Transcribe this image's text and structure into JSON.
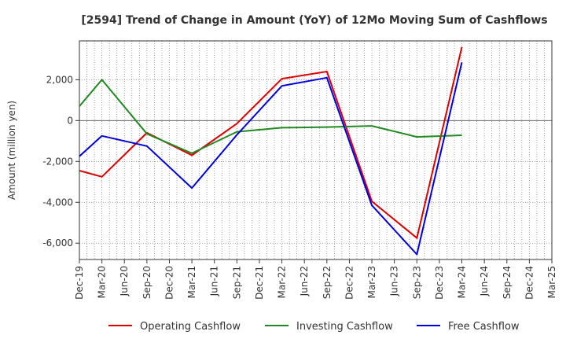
{
  "chart_data": {
    "type": "line",
    "title": "[2594]  Trend of Change in Amount (YoY) of 12Mo Moving Sum of Cashflows",
    "xlabel": "",
    "ylabel": "Amount (million yen)",
    "ylim": [
      -6800,
      3900
    ],
    "yticks": [
      -6000,
      -4000,
      -2000,
      0,
      2000
    ],
    "ytick_labels": [
      "-6,000",
      "-4,000",
      "-2,000",
      "0",
      "2,000"
    ],
    "categories": [
      "Dec-19",
      "Mar-20",
      "Jun-20",
      "Sep-20",
      "Dec-20",
      "Mar-21",
      "Jun-21",
      "Sep-21",
      "Dec-21",
      "Mar-22",
      "Jun-22",
      "Sep-22",
      "Dec-22",
      "Mar-23",
      "Jun-23",
      "Sep-23",
      "Dec-23",
      "Mar-24",
      "Jun-24",
      "Sep-24",
      "Dec-24",
      "Mar-25"
    ],
    "grid": true,
    "legend_position": "bottom",
    "series": [
      {
        "name": "Operating Cashflow",
        "color": "#dd0000",
        "values": [
          -2450,
          -2750,
          null,
          -600,
          null,
          -1700,
          null,
          -150,
          null,
          2050,
          null,
          2400,
          null,
          -3950,
          null,
          -5750,
          null,
          3600,
          null,
          null,
          null,
          null
        ]
      },
      {
        "name": "Investing Cashflow",
        "color": "#228822",
        "values": [
          700,
          2000,
          null,
          -650,
          null,
          -1600,
          null,
          -550,
          null,
          -350,
          null,
          -320,
          null,
          -260,
          null,
          -800,
          null,
          -720,
          null,
          null,
          null,
          null
        ]
      },
      {
        "name": "Free Cashflow",
        "color": "#0000dd",
        "values": [
          -1750,
          -750,
          null,
          -1250,
          null,
          -3300,
          null,
          -700,
          null,
          1700,
          null,
          2100,
          null,
          -4150,
          null,
          -6550,
          null,
          2850,
          null,
          null,
          null,
          null
        ]
      }
    ]
  }
}
